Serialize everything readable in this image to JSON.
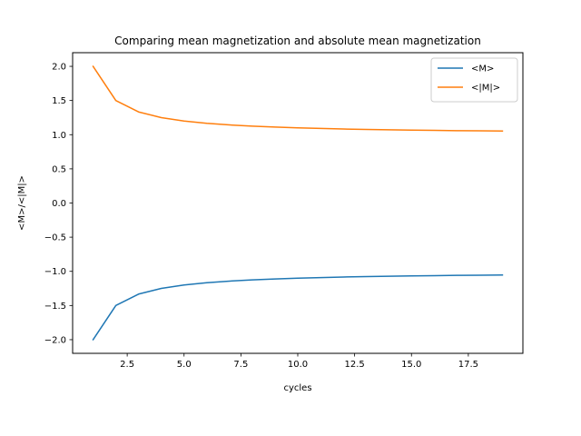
{
  "chart_data": {
    "type": "line",
    "title": "Comparing mean magnetization and absolute mean magnetization",
    "xlabel": "cycles",
    "ylabel": "<M>/<|M|>",
    "xlim": [
      0.1,
      19.9
    ],
    "ylim": [
      -2.2,
      2.2
    ],
    "xticks": [
      2.5,
      5.0,
      7.5,
      10.0,
      12.5,
      15.0,
      17.5
    ],
    "xtick_labels": [
      "2.5",
      "5.0",
      "7.5",
      "10.0",
      "12.5",
      "15.0",
      "17.5"
    ],
    "yticks": [
      -2.0,
      -1.5,
      -1.0,
      -0.5,
      0.0,
      0.5,
      1.0,
      1.5,
      2.0
    ],
    "ytick_labels": [
      "−2.0",
      "−1.5",
      "−1.0",
      "−0.5",
      "0.0",
      "0.5",
      "1.0",
      "1.5",
      "2.0"
    ],
    "grid": false,
    "legend_position": "top-right",
    "x": [
      1,
      2,
      3,
      4,
      5,
      6,
      7,
      8,
      9,
      10,
      11,
      12,
      13,
      14,
      15,
      16,
      17,
      18,
      19
    ],
    "series": [
      {
        "name": "<M>",
        "color": "#1f77b4",
        "values": [
          -2.0,
          -1.5,
          -1.333,
          -1.25,
          -1.2,
          -1.167,
          -1.143,
          -1.125,
          -1.111,
          -1.1,
          -1.091,
          -1.083,
          -1.077,
          -1.071,
          -1.067,
          -1.063,
          -1.059,
          -1.056,
          -1.053
        ]
      },
      {
        "name": "<|M|>",
        "color": "#ff7f0e",
        "values": [
          2.0,
          1.5,
          1.333,
          1.25,
          1.2,
          1.167,
          1.143,
          1.125,
          1.111,
          1.1,
          1.091,
          1.083,
          1.077,
          1.071,
          1.067,
          1.063,
          1.059,
          1.056,
          1.053
        ]
      }
    ]
  }
}
